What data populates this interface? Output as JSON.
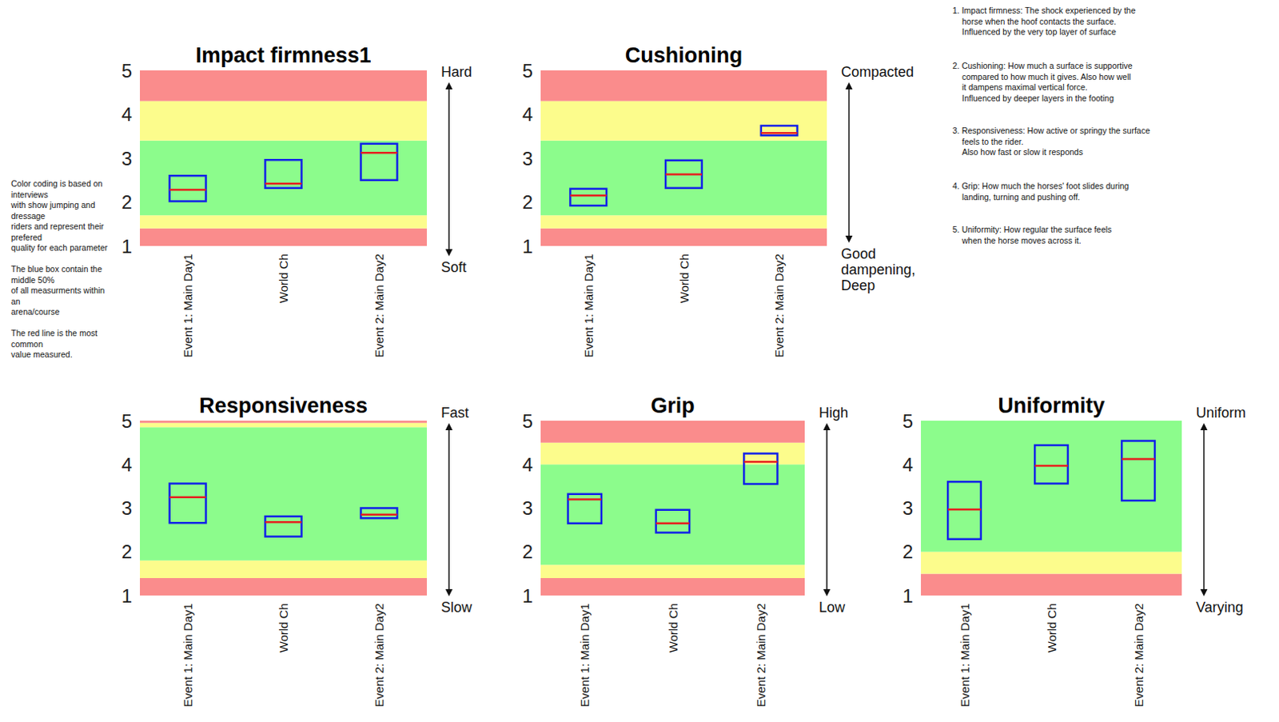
{
  "chart_data": [
    {
      "type": "boxplot",
      "title": "Impact firmness1",
      "categories": [
        "Event 1: Main Day1",
        "World Ch",
        "Event 2: Main Day2"
      ],
      "y_top_label": "Hard",
      "y_bottom_label": "Soft",
      "ylim": [
        1,
        5
      ],
      "yticks": [
        1,
        2,
        3,
        4,
        5
      ],
      "grid": false,
      "bands": [
        {
          "from": 1,
          "to": 1.4,
          "color": "#fa8c8c"
        },
        {
          "from": 1.4,
          "to": 1.7,
          "color": "#fcfc8c"
        },
        {
          "from": 1.7,
          "to": 3.4,
          "color": "#8cfc8c"
        },
        {
          "from": 3.4,
          "to": 4.3,
          "color": "#fcfc8c"
        },
        {
          "from": 4.3,
          "to": 5,
          "color": "#fa8c8c"
        }
      ],
      "series": [
        {
          "type": "box",
          "color": "#1020e8",
          "low": [
            2.02,
            2.32,
            2.5
          ],
          "high": [
            2.6,
            2.96,
            3.33
          ]
        },
        {
          "type": "median",
          "color": "#e61e1e",
          "values": [
            2.28,
            2.42,
            3.12
          ]
        }
      ]
    },
    {
      "type": "boxplot",
      "title": "Cushioning",
      "categories": [
        "Event 1: Main Day1",
        "World Ch",
        "Event 2: Main Day2"
      ],
      "y_top_label": "Compacted",
      "y_bottom_label": "Good dampening, Deep",
      "ylim": [
        1,
        5
      ],
      "yticks": [
        1,
        2,
        3,
        4,
        5
      ],
      "grid": false,
      "bands": [
        {
          "from": 1,
          "to": 1.4,
          "color": "#fa8c8c"
        },
        {
          "from": 1.4,
          "to": 1.7,
          "color": "#fcfc8c"
        },
        {
          "from": 1.7,
          "to": 3.4,
          "color": "#8cfc8c"
        },
        {
          "from": 3.4,
          "to": 4.3,
          "color": "#fcfc8c"
        },
        {
          "from": 4.3,
          "to": 5,
          "color": "#fa8c8c"
        }
      ],
      "series": [
        {
          "type": "box",
          "color": "#1020e8",
          "low": [
            1.92,
            2.32,
            3.52
          ],
          "high": [
            2.3,
            2.95,
            3.74
          ]
        },
        {
          "type": "median",
          "color": "#e61e1e",
          "values": [
            2.15,
            2.63,
            3.57
          ]
        }
      ]
    },
    {
      "type": "boxplot",
      "title": "Responsiveness",
      "categories": [
        "Event 1: Main Day1",
        "World Ch",
        "Event 2: Main Day2"
      ],
      "y_top_label": "Fast",
      "y_bottom_label": "Slow",
      "ylim": [
        1,
        5
      ],
      "yticks": [
        1,
        2,
        3,
        4,
        5
      ],
      "grid": false,
      "bands": [
        {
          "from": 1,
          "to": 1.4,
          "color": "#fa8c8c"
        },
        {
          "from": 1.4,
          "to": 1.8,
          "color": "#fcfc8c"
        },
        {
          "from": 1.8,
          "to": 4.85,
          "color": "#8cfc8c"
        },
        {
          "from": 4.85,
          "to": 4.95,
          "color": "#fcfc8c"
        },
        {
          "from": 4.95,
          "to": 5,
          "color": "#fa8c8c"
        }
      ],
      "series": [
        {
          "type": "box",
          "color": "#1020e8",
          "low": [
            2.66,
            2.35,
            2.77
          ],
          "high": [
            3.56,
            2.81,
            3.0
          ]
        },
        {
          "type": "median",
          "color": "#e61e1e",
          "values": [
            3.25,
            2.68,
            2.85
          ]
        }
      ]
    },
    {
      "type": "boxplot",
      "title": "Grip",
      "categories": [
        "Event 1: Main Day1",
        "World Ch",
        "Event 2: Main Day2"
      ],
      "y_top_label": "High",
      "y_bottom_label": "Low",
      "ylim": [
        1,
        5
      ],
      "yticks": [
        1,
        2,
        3,
        4,
        5
      ],
      "grid": false,
      "bands": [
        {
          "from": 1,
          "to": 1.4,
          "color": "#fa8c8c"
        },
        {
          "from": 1.4,
          "to": 1.7,
          "color": "#fcfc8c"
        },
        {
          "from": 1.7,
          "to": 4.0,
          "color": "#8cfc8c"
        },
        {
          "from": 4.0,
          "to": 4.5,
          "color": "#fcfc8c"
        },
        {
          "from": 4.5,
          "to": 5,
          "color": "#fa8c8c"
        }
      ],
      "series": [
        {
          "type": "box",
          "color": "#1020e8",
          "low": [
            2.65,
            2.44,
            3.55
          ],
          "high": [
            3.32,
            2.96,
            4.25
          ]
        },
        {
          "type": "median",
          "color": "#e61e1e",
          "values": [
            3.2,
            2.65,
            4.06
          ]
        }
      ]
    },
    {
      "type": "boxplot",
      "title": "Uniformity",
      "categories": [
        "Event 1: Main Day1",
        "World Ch",
        "Event 2: Main Day2"
      ],
      "y_top_label": "Uniform",
      "y_bottom_label": "Varying",
      "ylim": [
        1,
        5
      ],
      "yticks": [
        1,
        2,
        3,
        4,
        5
      ],
      "grid": false,
      "bands": [
        {
          "from": 1,
          "to": 1.5,
          "color": "#fa8c8c"
        },
        {
          "from": 1.5,
          "to": 2,
          "color": "#fcfc8c"
        },
        {
          "from": 2,
          "to": 5,
          "color": "#8cfc8c"
        }
      ],
      "series": [
        {
          "type": "box",
          "color": "#1020e8",
          "low": [
            2.29,
            3.56,
            3.17
          ],
          "high": [
            3.6,
            4.44,
            4.54
          ]
        },
        {
          "type": "median",
          "color": "#e61e1e",
          "values": [
            2.97,
            3.97,
            4.12
          ]
        }
      ]
    }
  ],
  "notes": [
    [
      "Color coding is based on",
      "interviews",
      "with show jumping and",
      "dressage",
      "riders and represent their",
      "prefered",
      "quality for each parameter"
    ],
    [
      "The blue box contain the",
      "middle 50%",
      "of all measurments within",
      "an",
      "arena/course"
    ],
    [
      "The red line is the most",
      "common",
      "value measured."
    ]
  ],
  "definitions": [
    [
      "1. Impact firmness: The shock experienced by the",
      "horse when the hoof contacts the surface.",
      "Influenced by the very top layer of surface"
    ],
    [
      "2. Cushioning: How much a surface is supportive",
      "compared to how much it gives. Also how well",
      "it dampens maximal vertical force.",
      "Influenced by deeper layers in the footing"
    ],
    [
      "3. Responsiveness: How active or springy the surface",
      "feels to the rider.",
      "Also how fast or slow it responds"
    ],
    [
      "4. Grip: How much the horses' foot slides during",
      "landing, turning and pushing off."
    ],
    [
      "5. Uniformity: How regular the surface feels",
      "when the horse moves across it."
    ]
  ]
}
